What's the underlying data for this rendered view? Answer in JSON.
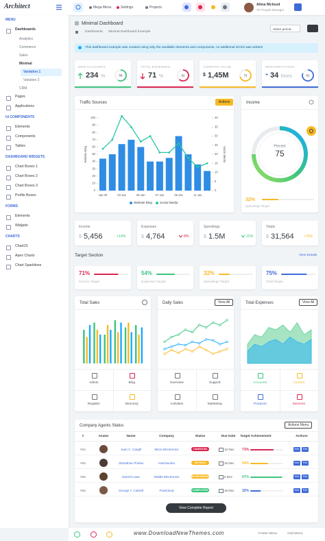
{
  "header": {
    "logo": "Architect",
    "menu": [
      "Mega Menu",
      "Settings",
      "Projects"
    ],
    "user_name": "Alina Mcloud",
    "user_role": "VP People Manager"
  },
  "sidebar": [
    {
      "heading": "MENU",
      "items": [
        {
          "label": "Dashboards",
          "children": [
            {
              "label": "Analytics"
            },
            {
              "label": "Commerce"
            },
            {
              "label": "Sales"
            },
            {
              "label": "Minimal",
              "children": [
                {
                  "label": "Variation 1"
                },
                {
                  "label": "Variation 2"
                }
              ]
            },
            {
              "label": "CRM"
            }
          ]
        },
        {
          "label": "Pages"
        },
        {
          "label": "Applications"
        }
      ]
    },
    {
      "heading": "UI COMPONENTS",
      "items": [
        {
          "label": "Elements"
        },
        {
          "label": "Components"
        },
        {
          "label": "Tables"
        }
      ]
    },
    {
      "heading": "DASHBOARD WIDGETS",
      "items": [
        {
          "label": "Chart Boxes 1"
        },
        {
          "label": "Chart Boxes 2"
        },
        {
          "label": "Chart Boxes 3"
        },
        {
          "label": "Profile Boxes"
        }
      ]
    },
    {
      "heading": "FORMS",
      "items": [
        {
          "label": "Elements"
        },
        {
          "label": "Widgets"
        }
      ]
    },
    {
      "heading": "CHARTS",
      "items": [
        {
          "label": "ChartJS"
        },
        {
          "label": "Apex Charts"
        },
        {
          "label": "Chart Sparklines"
        }
      ]
    }
  ],
  "page_title": "Minimal Dashboard",
  "breadcrumb": [
    "Dashboards",
    "Minimal Dashboard Example"
  ],
  "period_select": "Select period...",
  "alert": "This dashboard example was created using only the available elements and components, no additional SCSS was written!",
  "stats": [
    {
      "label": "NEW ACCOUNTS",
      "value": "234",
      "unit": "%",
      "ring": 58,
      "trend": "up",
      "color": "#3ac47d"
    },
    {
      "label": "TOTAL EXPENSES",
      "value": "71",
      "unit": "%",
      "ring": 62,
      "trend": "down",
      "color": "#d92550"
    },
    {
      "label": "COMPANY VALUE",
      "prefix": "$",
      "value": "1,45M",
      "ring": 72,
      "color": "#f7b924"
    },
    {
      "label": "NEW EMPLOYEES",
      "prefix": "+",
      "value": "34",
      "unit": "hires",
      "ring": 81,
      "color": "#3f6ad8"
    }
  ],
  "traffic": {
    "title": "Traffic Sources",
    "button": "Actions",
    "chart": {
      "type": "bar",
      "categories": [
        "Jan 00",
        null,
        "03 Jan",
        null,
        "05 Jan",
        null,
        "07 Jan",
        null,
        "09 Jan",
        null,
        "11 Jan",
        null
      ],
      "series": [
        {
          "name": "Website Blog",
          "color": "#2f8de4",
          "values": [
            44,
            50,
            64,
            70,
            60,
            40,
            40,
            45,
            75,
            50,
            36,
            27
          ]
        },
        {
          "name": "Social Media",
          "color": "#26c6a6",
          "axis": "y2",
          "values": [
            23,
            28,
            41,
            35,
            27,
            30,
            21,
            21,
            26,
            18,
            13,
            15
          ]
        }
      ],
      "ylim": [
        0,
        100
      ],
      "yticks": [
        0,
        10,
        20,
        30,
        40,
        50,
        60,
        70,
        80,
        90,
        100
      ],
      "y2lim": [
        0,
        40
      ],
      "y2ticks": [
        0,
        5,
        10,
        15,
        20,
        25,
        30,
        35,
        40
      ],
      "ylabel": "Website Blog",
      "y2label": "Social Media"
    }
  },
  "income": {
    "title": "Income",
    "gauge_label": "Percent",
    "gauge_value": 75,
    "target": {
      "value": 32,
      "label": "32%"
    },
    "target_label": "Spendings Target"
  },
  "summary": [
    {
      "label": "Income",
      "prefix": "$",
      "value": "5,456",
      "change": "+14%",
      "color": "#3ac47d"
    },
    {
      "label": "Expenses",
      "prefix": "$",
      "value": "4,764",
      "change": "8%",
      "trend": "down",
      "color": "#d92550"
    },
    {
      "label": "Spendings",
      "prefix": "$",
      "value": "1.5M",
      "change": "15%",
      "trend": "down",
      "color": "#3ac47d"
    },
    {
      "label": "Totals",
      "prefix": "$",
      "value": "31,564",
      "change": "+76%",
      "color": "#f7b924"
    }
  ],
  "target_section": {
    "title": "Target Section",
    "link": "View Details",
    "items": [
      {
        "value": 71,
        "label": "71%",
        "name": "Income Target",
        "color": "#d92550"
      },
      {
        "value": 54,
        "label": "54%",
        "name": "Expenses Target",
        "color": "#3ac47d"
      },
      {
        "value": 32,
        "label": "32%",
        "name": "Spendings Target",
        "color": "#f7b924"
      },
      {
        "value": 75,
        "label": "75%",
        "name": "Total Target",
        "color": "#3f6ad8"
      }
    ]
  },
  "widgets": [
    {
      "title": "Total Sales",
      "chart": {
        "type": "bar",
        "ylim": [
          0,
          100
        ],
        "series": [
          {
            "color": "#3ac47d",
            "values": [
              70,
              85,
              60,
              90,
              75,
              80
            ]
          },
          {
            "color": "#f7b924",
            "values": [
              55,
              70,
              80,
              65,
              85,
              60
            ]
          },
          {
            "color": "#16aaff",
            "values": [
              80,
              60,
              70,
              85,
              65,
              75
            ]
          }
        ]
      },
      "tiles": [
        "Admin",
        "Blog",
        "Register",
        "Directory"
      ]
    },
    {
      "title": "Daily Sales",
      "button": "View All",
      "chart": {
        "type": "line",
        "ylim": [
          0,
          100
        ],
        "series": [
          {
            "color": "#3ac47d",
            "values": [
              45,
              55,
              60,
              70,
              65,
              80,
              75,
              85,
              80,
              90
            ]
          },
          {
            "color": "#16aaff",
            "values": [
              30,
              35,
              40,
              38,
              45,
              42,
              50,
              48,
              40,
              45
            ]
          },
          {
            "color": "#f7b924",
            "values": [
              20,
              28,
              22,
              30,
              25,
              35,
              28,
              20,
              25,
              30
            ]
          }
        ]
      },
      "tiles": [
        "Overview",
        "Support",
        "Activities",
        "Marketing"
      ]
    },
    {
      "title": "Total Expenses",
      "button": "View All",
      "chart": {
        "type": "area",
        "ylim": [
          0,
          100
        ],
        "series": [
          {
            "color": "#3ac47d",
            "values": [
              40,
              60,
              55,
              75,
              70,
              80,
              65,
              85,
              60,
              70
            ]
          },
          {
            "color": "#16aaff",
            "values": [
              25,
              40,
              35,
              45,
              50,
              40,
              55,
              45,
              40,
              50
            ]
          }
        ]
      },
      "tiles": [
        "Accounts",
        "Content",
        "Products",
        "Services"
      ]
    }
  ],
  "agents": {
    "title": "Company Agents Status",
    "button": "Actions Menu",
    "columns": [
      "#",
      "Avatar",
      "Name",
      "Company",
      "Status",
      "Due Date",
      "Target Achievement",
      "Actions"
    ],
    "actions": [
      "Hire",
      "Fire"
    ],
    "rows": [
      {
        "id": "#54",
        "name": "Juan C. Cargill",
        "company": "Micro Electronics",
        "status": "CANCELED",
        "status_color": "#d92550",
        "due": "12 Dec",
        "target": {
          "value": 71,
          "label": "71%"
        },
        "color": "#d92550"
      },
      {
        "id": "#55",
        "name": "Johnathan Phelan",
        "company": "Hatchworks",
        "status": "ON HOLD",
        "status_color": "#f7b924",
        "due": "15 Dec",
        "target": {
          "value": 54,
          "label": "54%"
        },
        "color": "#f7b924"
      },
      {
        "id": "#56",
        "name": "Darrell Lowe",
        "company": "Riddle Electronics",
        "status": "IN PROGRESS",
        "status_color": "#f7b924",
        "due": "6 Dec",
        "target": {
          "value": 97,
          "label": "97%"
        },
        "color": "#3ac47d"
      },
      {
        "id": "#56",
        "name": "George T. Cottrell",
        "company": "Pixelcloud",
        "status": "COMPLETED",
        "status_color": "#3ac47d",
        "due": "19 Dec",
        "target": {
          "value": 32,
          "label": "32%"
        },
        "color": "#3f6ad8"
      }
    ],
    "footer_button": "View Complete Report"
  },
  "footer": {
    "watermark": "www.DownloadNewThemes.com",
    "links": [
      "Footer Menu",
      "Grid Menu"
    ]
  }
}
